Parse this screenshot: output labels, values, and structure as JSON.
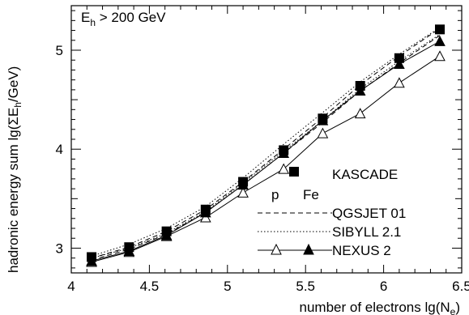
{
  "chart_data": {
    "type": "line",
    "xlabel": "number of electrons lg(N",
    "xlabel_sub": "e",
    "xlabel_close": ")",
    "ylabel": "hadronic energy sum lg(ΣE",
    "ylabel_sub": "h",
    "ylabel_close": "/GeV)",
    "annotation": "E",
    "annotation_sub": "h",
    "annotation_rest": " > 200 GeV",
    "xlim": [
      4.0,
      6.5
    ],
    "ylim": [
      2.75,
      5.45
    ],
    "x_ticks": [
      4,
      4.5,
      5,
      5.5,
      6,
      6.5
    ],
    "x_tick_labels": [
      "4",
      "4.5",
      "5",
      "5.5",
      "6",
      "6.5"
    ],
    "y_ticks": [
      3,
      4,
      5
    ],
    "y_tick_labels": [
      "3",
      "4",
      "5"
    ],
    "legend": {
      "kascade": "KASCADE",
      "p": "p",
      "fe": "Fe",
      "qgsjet": "QGSJET 01",
      "sibyll": "SIBYLL 2.1",
      "nexus": "NEXUS 2"
    },
    "kascade": {
      "x": [
        4.13,
        4.37,
        4.61,
        4.86,
        5.1,
        5.36,
        5.61,
        5.85,
        6.1,
        6.36
      ],
      "y": [
        2.91,
        3.01,
        3.17,
        3.39,
        3.67,
        3.99,
        4.31,
        4.64,
        4.92,
        5.21
      ]
    },
    "series": [
      {
        "model": "qgsjet",
        "primary": "p",
        "style": "dashed",
        "x": [
          4.13,
          4.37,
          4.61,
          4.86,
          5.1,
          5.36,
          5.61,
          5.85,
          6.1,
          6.36
        ],
        "y": [
          2.9,
          3.01,
          3.17,
          3.39,
          3.67,
          4.0,
          4.32,
          4.65,
          4.94,
          5.22
        ]
      },
      {
        "model": "qgsjet",
        "primary": "Fe",
        "style": "dashed",
        "x": [
          4.13,
          4.37,
          4.61,
          4.86,
          5.1,
          5.36,
          5.61,
          5.85,
          6.1,
          6.36
        ],
        "y": [
          2.88,
          2.99,
          3.14,
          3.36,
          3.64,
          3.96,
          4.27,
          4.59,
          4.87,
          5.15
        ]
      },
      {
        "model": "sibyll",
        "primary": "p",
        "style": "dotted",
        "x": [
          4.13,
          4.37,
          4.61,
          4.86,
          5.1,
          5.36,
          5.61,
          5.85,
          6.1,
          6.36
        ],
        "y": [
          2.92,
          3.04,
          3.2,
          3.42,
          3.71,
          4.05,
          4.37,
          4.68,
          4.96,
          5.23
        ]
      },
      {
        "model": "sibyll",
        "primary": "Fe",
        "style": "dotted",
        "x": [
          4.13,
          4.37,
          4.61,
          4.86,
          5.1,
          5.36,
          5.61,
          5.85,
          6.1,
          6.36
        ],
        "y": [
          2.9,
          3.0,
          3.15,
          3.37,
          3.66,
          3.98,
          4.29,
          4.61,
          4.89,
          5.16
        ]
      },
      {
        "model": "nexus",
        "primary": "p",
        "style": "solid",
        "marker": "open-triangle",
        "x": [
          4.13,
          4.37,
          4.61,
          4.86,
          5.1,
          5.36,
          5.61,
          5.85,
          6.1,
          6.36
        ],
        "y": [
          2.86,
          2.96,
          3.12,
          3.31,
          3.56,
          3.8,
          4.16,
          4.36,
          4.67,
          4.94
        ]
      },
      {
        "model": "nexus",
        "primary": "Fe",
        "style": "solid",
        "marker": "filled-triangle",
        "x": [
          4.13,
          4.37,
          4.61,
          4.86,
          5.1,
          5.36,
          5.61,
          5.85,
          6.1,
          6.36
        ],
        "y": [
          2.87,
          2.97,
          3.13,
          3.36,
          3.64,
          3.96,
          4.29,
          4.59,
          4.86,
          5.09
        ]
      }
    ]
  }
}
